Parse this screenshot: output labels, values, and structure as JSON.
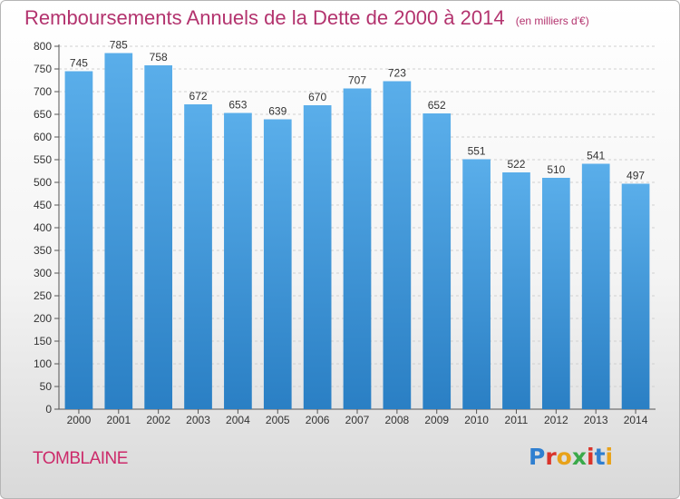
{
  "title": "Remboursements Annuels de la Dette de 2000 à 2014",
  "title_unit": "(en milliers d'€)",
  "town": "TOMBLAINE",
  "logo_text": "Proxiti",
  "colors": {
    "title": "#b3336e",
    "town": "#cc2a6a",
    "bar_top": "#5aaeea",
    "bar_bottom": "#2a7fc4",
    "logo_letters": [
      "#2f7fd0",
      "#d9342b",
      "#e8a21a",
      "#3aa94a",
      "#d9342b",
      "#2f7fd0",
      "#e8a21a"
    ]
  },
  "chart_data": {
    "type": "bar",
    "title": "Remboursements Annuels de la Dette de 2000 à 2014",
    "xlabel": "",
    "ylabel": "",
    "categories": [
      "2000",
      "2001",
      "2002",
      "2003",
      "2004",
      "2005",
      "2006",
      "2007",
      "2008",
      "2009",
      "2010",
      "2011",
      "2012",
      "2013",
      "2014"
    ],
    "values": [
      745,
      785,
      758,
      672,
      653,
      639,
      670,
      707,
      723,
      652,
      551,
      522,
      510,
      541,
      497
    ],
    "data_labels": [
      "745",
      "785",
      "758",
      "672",
      "653",
      "639",
      "670",
      "707",
      "723",
      "652",
      "551",
      "522",
      "510",
      "541",
      "497"
    ],
    "yticks": [
      "0",
      "50",
      "100",
      "150",
      "200",
      "250",
      "300",
      "350",
      "400",
      "450",
      "500",
      "550",
      "600",
      "650",
      "700",
      "750",
      "800"
    ],
    "ylim": [
      0,
      800
    ],
    "grid": true,
    "legend": "none"
  }
}
